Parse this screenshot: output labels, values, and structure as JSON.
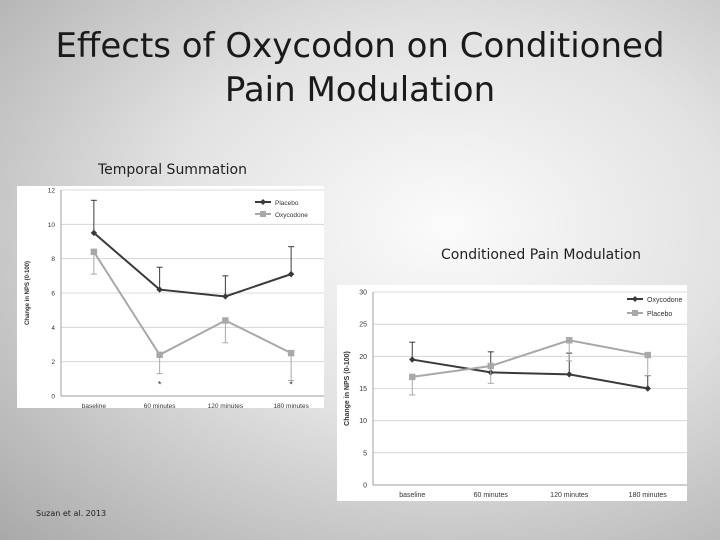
{
  "slide": {
    "title_line1": "Effects of Oxycodon on Conditioned",
    "title_line2": "Pain Modulation",
    "citation": "Suzan et al. 2013"
  },
  "chart_data": [
    {
      "type": "line",
      "title": "Temporal Summation",
      "ylabel": "Change in NPS (0-100)",
      "xlabel": "",
      "categories": [
        "baseline",
        "60 minutes",
        "120 minutes",
        "180 minutes"
      ],
      "ylim": [
        0,
        12
      ],
      "yticks": [
        0,
        2,
        4,
        6,
        8,
        10,
        12
      ],
      "grid": true,
      "legend": "top-right",
      "series": [
        {
          "name": "Placebo",
          "color": "#3a3a3a",
          "marker": "diamond",
          "values": [
            9.5,
            6.2,
            5.8,
            7.1
          ],
          "err_high": [
            11.4,
            7.5,
            7.0,
            8.7
          ]
        },
        {
          "name": "Oxycodone",
          "color": "#a8a8a8",
          "marker": "square",
          "values": [
            8.4,
            2.4,
            4.4,
            2.5
          ],
          "err_low": [
            7.1,
            1.3,
            3.1,
            0.9
          ]
        }
      ],
      "annotations": [
        {
          "category": "60 minutes",
          "value": 0.5,
          "text": "*"
        },
        {
          "category": "180 minutes",
          "value": 0.5,
          "text": "*"
        }
      ]
    },
    {
      "type": "line",
      "title": "Conditioned Pain Modulation",
      "ylabel": "Change in NPS (0-100)",
      "xlabel": "",
      "categories": [
        "baseline",
        "60 minutes",
        "120 minutes",
        "180 minutes"
      ],
      "ylim": [
        0,
        30
      ],
      "yticks": [
        0,
        5,
        10,
        15,
        20,
        25,
        30
      ],
      "grid": true,
      "legend": "top-right",
      "series": [
        {
          "name": "Oxycodone",
          "color": "#3a3a3a",
          "marker": "diamond",
          "values": [
            19.5,
            17.5,
            17.2,
            15.0
          ],
          "err_high": [
            22.2,
            20.7,
            20.5,
            17.0
          ]
        },
        {
          "name": "Placebo",
          "color": "#a8a8a8",
          "marker": "square",
          "values": [
            16.8,
            18.5,
            22.5,
            20.2
          ],
          "err_low": [
            14.0,
            15.8,
            19.3,
            17.0
          ]
        }
      ],
      "annotations": []
    }
  ]
}
